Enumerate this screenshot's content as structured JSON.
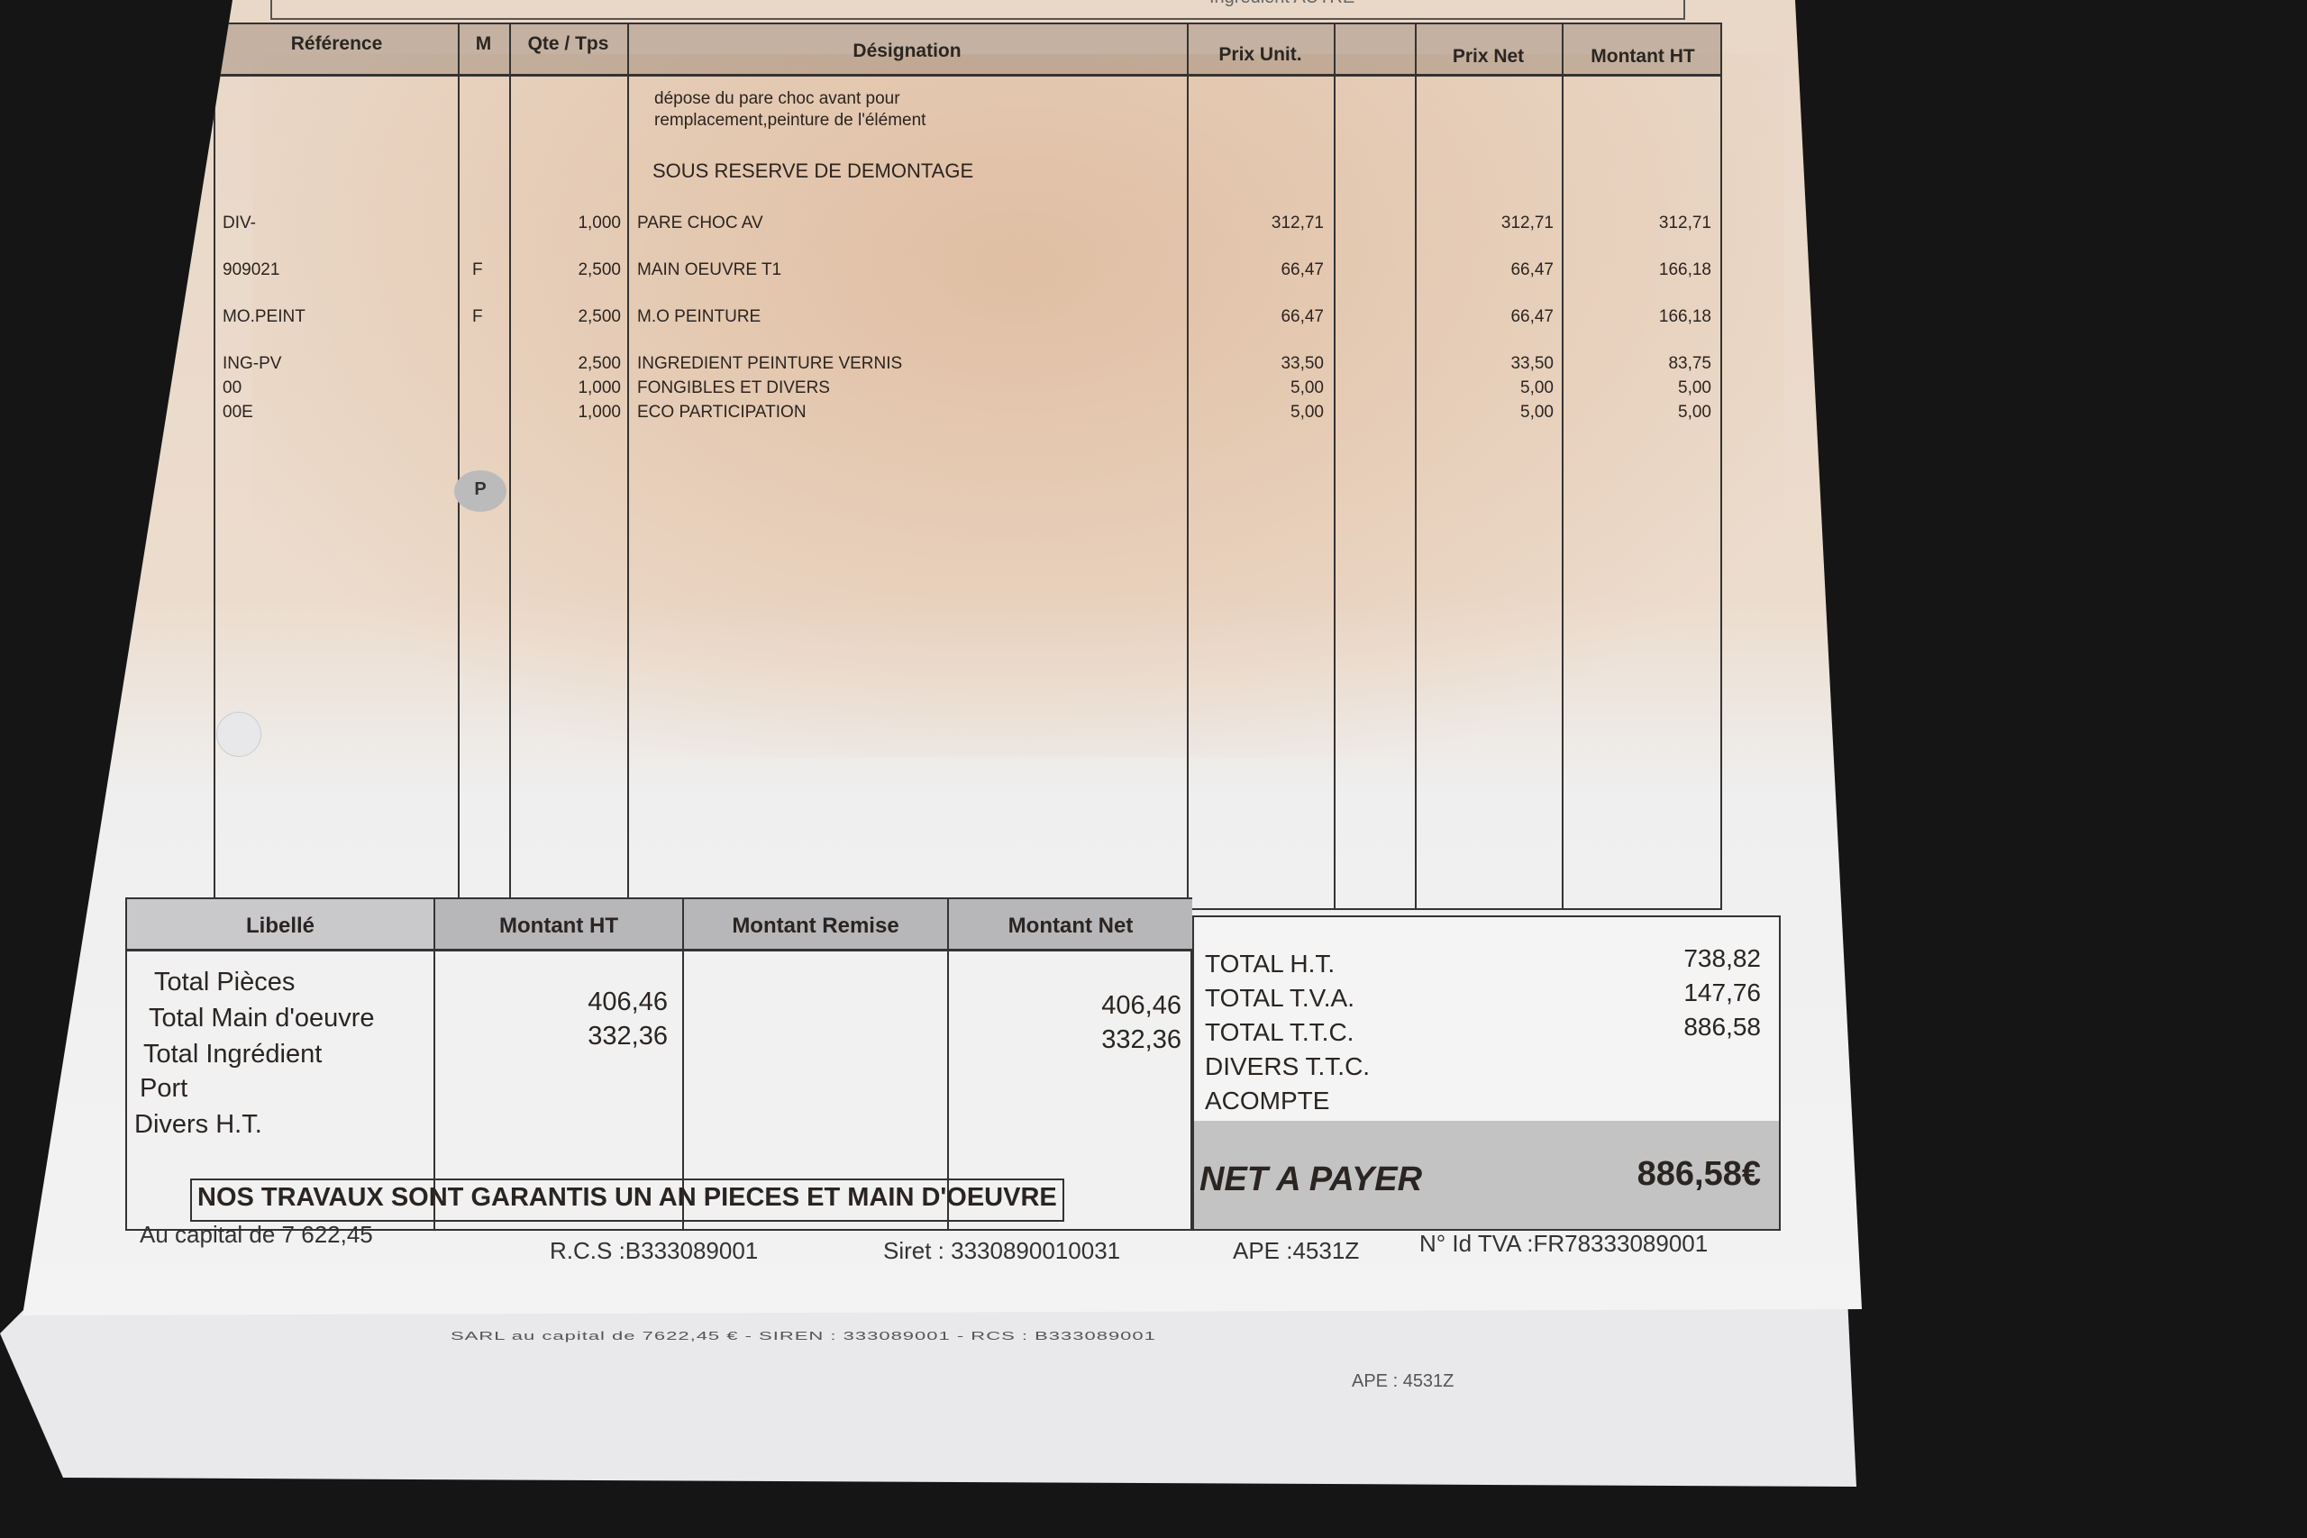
{
  "top_fragment": "Ingrédient    AUTRE",
  "headers": [
    "Référence",
    "M",
    "Qte / Tps",
    "Désignation",
    "Prix Unit.",
    "",
    "Prix Net",
    "Montant HT"
  ],
  "description_lines": [
    "dépose du pare choc avant pour",
    "remplacement,peinture de l'élément",
    "SOUS RESERVE DE DEMONTAGE"
  ],
  "lines": [
    {
      "ref": "DIV-",
      "m": "",
      "qte": "1,000",
      "designation": "PARE CHOC AV",
      "prix_unit": "312,71",
      "prix_net": "312,71",
      "montant_ht": "312,71"
    },
    {
      "ref": "909021",
      "m": "F",
      "qte": "2,500",
      "designation": "MAIN OEUVRE T1",
      "prix_unit": "66,47",
      "prix_net": "66,47",
      "montant_ht": "166,18"
    },
    {
      "ref": "MO.PEINT",
      "m": "F",
      "qte": "2,500",
      "designation": "M.O PEINTURE",
      "prix_unit": "66,47",
      "prix_net": "66,47",
      "montant_ht": "166,18"
    },
    {
      "ref": "ING-PV",
      "m": "",
      "qte": "2,500",
      "designation": "INGREDIENT PEINTURE VERNIS",
      "prix_unit": "33,50",
      "prix_net": "33,50",
      "montant_ht": "83,75"
    },
    {
      "ref": "00",
      "m": "",
      "qte": "1,000",
      "designation": "FONGIBLES ET DIVERS",
      "prix_unit": "5,00",
      "prix_net": "5,00",
      "montant_ht": "5,00"
    },
    {
      "ref": "00E",
      "m": "",
      "qte": "1,000",
      "designation": "ECO PARTICIPATION",
      "prix_unit": "5,00",
      "prix_net": "5,00",
      "montant_ht": "5,00"
    }
  ],
  "stamp": "P",
  "summary": {
    "headers": [
      "Libellé",
      "Montant HT",
      "Montant Remise",
      "Montant Net"
    ],
    "labels": [
      "Total Pièces",
      "Total Main d'oeuvre",
      "Total Ingrédient",
      "Port",
      "Divers H.T."
    ],
    "montant_ht": [
      "406,46",
      "332,36"
    ],
    "montant_net": [
      "406,46",
      "332,36"
    ]
  },
  "totals": [
    {
      "label": "TOTAL H.T.",
      "value": "738,82"
    },
    {
      "label": "TOTAL T.V.A.",
      "value": "147,76"
    },
    {
      "label": "TOTAL T.T.C.",
      "value": "886,58"
    },
    {
      "label": "DIVERS T.T.C.",
      "value": ""
    },
    {
      "label": "ACOMPTE",
      "value": ""
    }
  ],
  "net_a_payer": {
    "label": "NET A PAYER",
    "value": "886,58€"
  },
  "guarantee": "NOS TRAVAUX SONT GARANTIS UN AN PIECES ET MAIN D'OEUVRE",
  "footer": {
    "capital": "Au capital de 7 622,45",
    "rcs": "R.C.S :B333089001",
    "siret": "Siret : 3330890010031",
    "ape": "APE :4531Z",
    "tva": "N° Id TVA :FR78333089001"
  },
  "underlying_page": {
    "line1": "SARL au capital de 7622,45 € - SIREN : 333089001 - RCS : B333089001",
    "line2": "APE : 4531Z"
  }
}
